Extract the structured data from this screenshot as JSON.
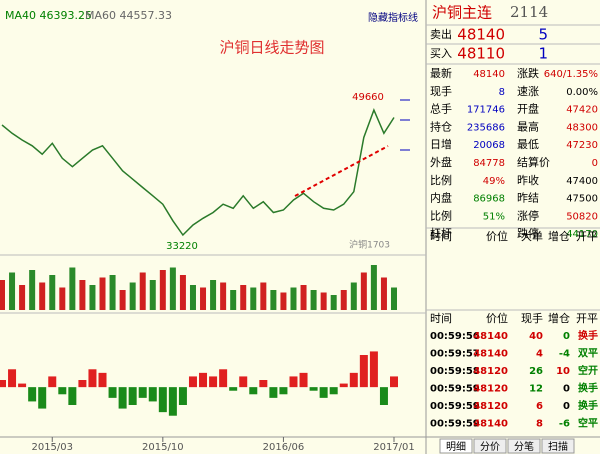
{
  "header": {
    "ma40": "MA40 46393.25",
    "ma60": "MA60 44557.33",
    "hide": "隐藏指标线",
    "title": "沪铜日线走势图",
    "contract": "沪铜1703"
  },
  "chart_data": {
    "type": "line",
    "color": "#2a7a2a",
    "values": [
      47000,
      46000,
      45200,
      44500,
      43500,
      44800,
      43000,
      42000,
      43000,
      44000,
      44500,
      43000,
      41500,
      40500,
      39500,
      38500,
      37500,
      35500,
      33800,
      35000,
      35800,
      36500,
      37500,
      37000,
      38500,
      37000,
      37800,
      36500,
      36800,
      38000,
      38800,
      37800,
      37000,
      36800,
      37500,
      39000,
      45500,
      48800,
      46000,
      47900
    ],
    "ylim": [
      32000,
      51200
    ],
    "high": 49660,
    "low": 33220,
    "xticks": [
      {
        "value": 5,
        "label": "2015/03"
      },
      {
        "value": 16,
        "label": "2015/10"
      },
      {
        "value": 28,
        "label": "2016/06"
      },
      {
        "value": 39,
        "label": "2017/01"
      }
    ],
    "volume": [
      60,
      75,
      50,
      80,
      55,
      70,
      45,
      85,
      60,
      50,
      65,
      70,
      40,
      55,
      75,
      60,
      80,
      85,
      70,
      50,
      45,
      60,
      55,
      40,
      50,
      45,
      55,
      40,
      35,
      45,
      50,
      40,
      35,
      30,
      40,
      55,
      75,
      90,
      65,
      45
    ],
    "volume_ylim": [
      0,
      100
    ],
    "macd": [
      0.2,
      0.5,
      0.1,
      -0.4,
      -0.6,
      0.3,
      -0.2,
      -0.5,
      0.2,
      0.5,
      0.4,
      -0.3,
      -0.6,
      -0.5,
      -0.3,
      -0.4,
      -0.7,
      -0.8,
      -0.5,
      0.3,
      0.4,
      0.3,
      0.5,
      -0.1,
      0.3,
      -0.2,
      0.2,
      -0.3,
      -0.2,
      0.3,
      0.4,
      -0.1,
      -0.3,
      -0.2,
      0.1,
      0.4,
      0.9,
      1.0,
      -0.5,
      0.3
    ],
    "macd_ylim": [
      -1.2,
      1.6
    ]
  },
  "quote": {
    "name": "沪铜主连",
    "code": "2114",
    "sell": [
      "卖出",
      "48140",
      "5"
    ],
    "buy": [
      "买入",
      "48110",
      "1"
    ],
    "rows": [
      [
        "最新",
        "48140",
        "涨跌",
        "640/1.35%"
      ],
      [
        "现手",
        "8",
        "速涨",
        "0.00%"
      ],
      [
        "总手",
        "171746",
        "开盘",
        "47420"
      ],
      [
        "持仓",
        "235686",
        "最高",
        "48300"
      ],
      [
        "日增",
        "20068",
        "最低",
        "47230"
      ],
      [
        "外盘",
        "84778",
        "结算价",
        "0"
      ],
      [
        "比例",
        "49%",
        "昨收",
        "47400"
      ],
      [
        "内盘",
        "86968",
        "昨结",
        "47500"
      ],
      [
        "比例",
        "51%",
        "涨停",
        "50820"
      ],
      [
        "杠杆",
        "",
        "跌停",
        "44170"
      ]
    ],
    "colors": [
      [
        "#d00000",
        "#d00000"
      ],
      [
        "#0000c0",
        "#000"
      ],
      [
        "#0000c0",
        "#d00000"
      ],
      [
        "#0000c0",
        "#d00000"
      ],
      [
        "#0000c0",
        "#d00000"
      ],
      [
        "#d00000",
        "#d00000"
      ],
      [
        "#d00000",
        "#000"
      ],
      [
        "#008000",
        "#000"
      ],
      [
        "#008000",
        "#d00000"
      ],
      [
        "#000",
        "#008000"
      ]
    ]
  },
  "big_orders": {
    "headers": [
      "时间",
      "价位",
      "大单",
      "增仓",
      "开平"
    ]
  },
  "ticks": {
    "headers": [
      "时间",
      "价位",
      "现手",
      "增仓",
      "开平"
    ],
    "rows": [
      [
        "00:59:56",
        "48140",
        "40",
        "0",
        "换手"
      ],
      [
        "00:59:57",
        "48140",
        "4",
        "-4",
        "双平"
      ],
      [
        "00:59:58",
        "48120",
        "26",
        "10",
        "空开"
      ],
      [
        "00:59:59",
        "48120",
        "12",
        "0",
        "换手"
      ],
      [
        "00:59:59",
        "48120",
        "6",
        "0",
        "换手"
      ],
      [
        "00:59:59",
        "48140",
        "8",
        "-6",
        "空平"
      ]
    ],
    "colors": [
      [
        "#d00000",
        "#008000",
        "#d00000"
      ],
      [
        "#d00000",
        "#008000",
        "#008000"
      ],
      [
        "#008000",
        "#d00000",
        "#008000"
      ],
      [
        "#008000",
        "#000",
        "#008000"
      ],
      [
        "#d00000",
        "#000",
        "#008000"
      ],
      [
        "#d00000",
        "#008000",
        "#008000"
      ]
    ]
  },
  "tabs": [
    "明细",
    "分价",
    "分笔",
    "扫描"
  ]
}
